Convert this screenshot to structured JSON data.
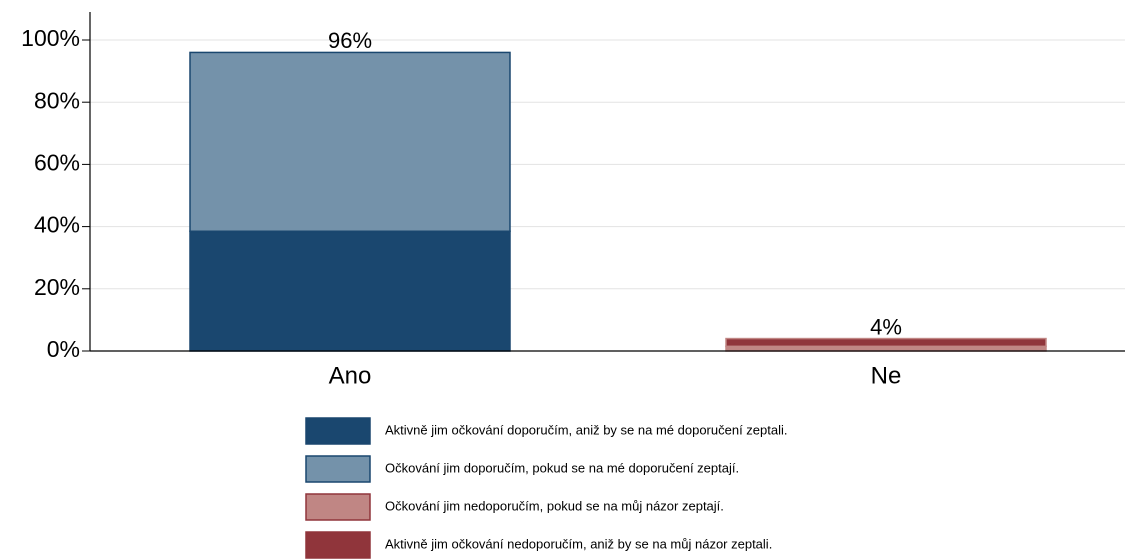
{
  "chart_data": {
    "type": "stacked-bar",
    "categories": [
      "Ano",
      "Ne"
    ],
    "series": [
      {
        "name": "Aktivně jim očkování doporučím, aniž by se na mé doporučení zeptali.",
        "color": "#1a476f",
        "values": [
          38.5,
          0
        ]
      },
      {
        "name": "Očkování jim doporučím, pokud se na mé doporučení zeptají.",
        "color": "#7492aa",
        "values": [
          57.5,
          0
        ]
      },
      {
        "name": "Očkování jim nedoporučím, pokud se na můj názor zeptají.",
        "color": "#c08684",
        "values": [
          0,
          1.5
        ]
      },
      {
        "name": "Aktivně jim očkování nedoporučím, aniž by se na můj názor zeptali.",
        "color": "#90353b",
        "values": [
          0,
          2.5
        ]
      }
    ],
    "totals": [
      96,
      4
    ],
    "value_labels": [
      "96%",
      "4%"
    ],
    "ylim": [
      0,
      109
    ],
    "yticks": [
      {
        "value": 0,
        "label": "0%"
      },
      {
        "value": 20,
        "label": "20%"
      },
      {
        "value": 40,
        "label": "40%"
      },
      {
        "value": 60,
        "label": "60%"
      },
      {
        "value": 80,
        "label": "80%"
      },
      {
        "value": 100,
        "label": "100%"
      }
    ],
    "grid": true
  }
}
